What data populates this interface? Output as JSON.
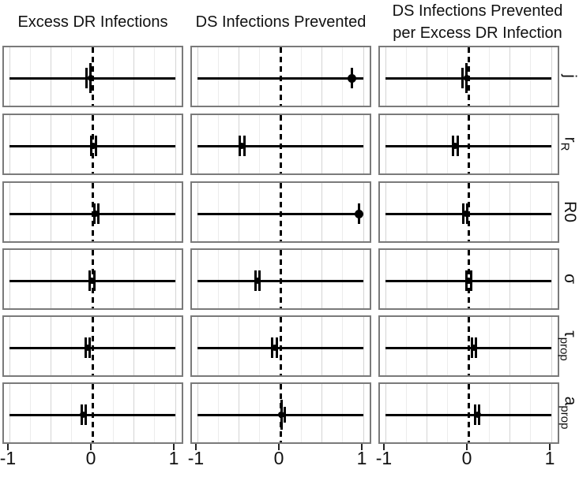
{
  "colors": {
    "line": "#000000",
    "panel_border": "#7a7a7a",
    "grid_major": "#d4d4d4",
    "grid_minor": "#ececec",
    "background": "#ffffff",
    "text": "#111111"
  },
  "chart_data": {
    "type": "scatter",
    "layout": "small-multiples grid, 3 columns x 6 rows, forest-style sensitivity analysis; each cell: horizontal range line, point estimate, short vertical whisker ticks, dashed reference line at x=0",
    "columns": [
      "Excess DR Infections",
      "DS Infections Prevented",
      "DS Infections Prevented\nper Excess DR Infection"
    ],
    "row_labels": [
      {
        "main": "j",
        "sub": ""
      },
      {
        "main": "r",
        "sub": "R"
      },
      {
        "main": "R0",
        "sub": ""
      },
      {
        "main": "σ",
        "sub": ""
      },
      {
        "main": "τ",
        "sub": "prop"
      },
      {
        "main": "a",
        "sub": "prop"
      }
    ],
    "xlim": [
      -1,
      1
    ],
    "x_ticks": [
      {
        "value": -1,
        "label": "-1"
      },
      {
        "value": 0,
        "label": "0"
      },
      {
        "value": 1,
        "label": "1"
      }
    ],
    "grid": {
      "major_every": 0.5,
      "minor_every": 0.25,
      "zero_line": "black dashed vertical at 0"
    },
    "legend": "none",
    "cells": [
      [
        {
          "point": -0.02,
          "point_size": 8,
          "range": [
            -1,
            1
          ],
          "whiskers": [
            {
              "x": -0.07,
              "size": "med"
            },
            {
              "x": -0.02,
              "size": "tall"
            }
          ]
        },
        {
          "point": 0.86,
          "point_size": 11,
          "range": [
            -1,
            1
          ],
          "whiskers": [
            {
              "x": 0.86,
              "size": "med"
            }
          ]
        },
        {
          "point": -0.02,
          "point_size": 8,
          "range": [
            -1,
            1
          ],
          "whiskers": [
            {
              "x": -0.07,
              "size": "med"
            },
            {
              "x": -0.02,
              "size": "tall"
            }
          ]
        }
      ],
      [
        {
          "point": 0.01,
          "point_size": 8,
          "range": [
            -1,
            1
          ],
          "whiskers": [
            {
              "x": -0.01,
              "size": "med"
            },
            {
              "x": 0.04,
              "size": "med"
            }
          ]
        },
        {
          "point": -0.47,
          "point_size": 8,
          "range": [
            -1,
            1
          ],
          "whiskers": [
            {
              "x": -0.49,
              "size": "med"
            },
            {
              "x": -0.43,
              "size": "med"
            }
          ]
        },
        {
          "point": -0.16,
          "point_size": 8,
          "range": [
            -1,
            1
          ],
          "whiskers": [
            {
              "x": -0.19,
              "size": "med"
            },
            {
              "x": -0.13,
              "size": "med"
            }
          ]
        }
      ],
      [
        {
          "point": 0.04,
          "point_size": 8,
          "range": [
            -1,
            1
          ],
          "whiskers": [
            {
              "x": 0.02,
              "size": "med"
            },
            {
              "x": 0.07,
              "size": "med"
            }
          ]
        },
        {
          "point": 0.95,
          "point_size": 11,
          "range": [
            -1,
            0.93
          ],
          "whiskers": [
            {
              "x": 0.95,
              "size": "med"
            }
          ]
        },
        {
          "point": -0.03,
          "point_size": 8,
          "range": [
            -1,
            1
          ],
          "whiskers": [
            {
              "x": -0.06,
              "size": "med"
            },
            {
              "x": -0.01,
              "size": "med"
            }
          ]
        }
      ],
      [
        {
          "point": -0.01,
          "point_size": 8,
          "range": [
            -1,
            1
          ],
          "whiskers": [
            {
              "x": -0.03,
              "size": "med"
            },
            {
              "x": 0.02,
              "size": "med"
            }
          ]
        },
        {
          "point": -0.28,
          "point_size": 8,
          "range": [
            -1,
            1
          ],
          "whiskers": [
            {
              "x": -0.3,
              "size": "med"
            },
            {
              "x": -0.25,
              "size": "med"
            }
          ]
        },
        {
          "point": 0.0,
          "point_size": 8,
          "range": [
            -1,
            1
          ],
          "whiskers": [
            {
              "x": -0.02,
              "size": "med"
            },
            {
              "x": 0.03,
              "size": "med"
            }
          ]
        }
      ],
      [
        {
          "point": -0.06,
          "point_size": 8,
          "range": [
            -1,
            1
          ],
          "whiskers": [
            {
              "x": -0.08,
              "size": "med"
            },
            {
              "x": -0.03,
              "size": "med"
            }
          ]
        },
        {
          "point": -0.07,
          "point_size": 8,
          "range": [
            -1,
            1
          ],
          "whiskers": [
            {
              "x": -0.1,
              "size": "med"
            },
            {
              "x": -0.04,
              "size": "med"
            }
          ]
        },
        {
          "point": 0.07,
          "point_size": 8,
          "range": [
            -1,
            1
          ],
          "whiskers": [
            {
              "x": 0.04,
              "size": "med"
            },
            {
              "x": 0.09,
              "size": "med"
            }
          ]
        }
      ],
      [
        {
          "point": -0.11,
          "point_size": 8,
          "range": [
            -1,
            1
          ],
          "whiskers": [
            {
              "x": -0.13,
              "size": "med"
            },
            {
              "x": -0.08,
              "size": "med"
            }
          ]
        },
        {
          "point": 0.01,
          "point_size": 8,
          "range": [
            -1,
            1
          ],
          "whiskers": [
            {
              "x": 0.01,
              "size": "tall"
            },
            {
              "x": 0.05,
              "size": "short"
            }
          ]
        },
        {
          "point": 0.11,
          "point_size": 8,
          "range": [
            -1,
            1
          ],
          "whiskers": [
            {
              "x": 0.08,
              "size": "med"
            },
            {
              "x": 0.13,
              "size": "med"
            }
          ]
        }
      ]
    ]
  }
}
